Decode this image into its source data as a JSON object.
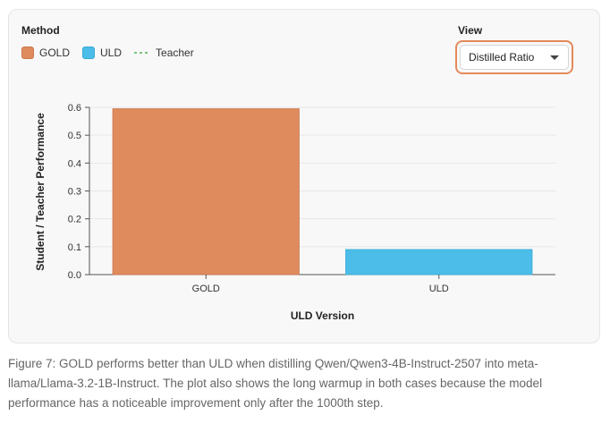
{
  "legend": {
    "title": "Method",
    "items": [
      {
        "label": "GOLD",
        "color": "#e08b5e",
        "style": "swatch"
      },
      {
        "label": "ULD",
        "color": "#4cbde8",
        "style": "swatch"
      },
      {
        "label": "Teacher",
        "color": "#4caf50",
        "style": "dashed-line"
      }
    ]
  },
  "view": {
    "title": "View",
    "selected": "Distilled Ratio",
    "accent": "#e4895a"
  },
  "chart_data": {
    "type": "bar",
    "categories": [
      "GOLD",
      "ULD"
    ],
    "values": [
      0.595,
      0.09
    ],
    "colors": [
      "#e08b5e",
      "#4cbde8"
    ],
    "xlabel": "ULD Version",
    "ylabel": "Student / Teacher Performance",
    "ylim": [
      0,
      0.6
    ],
    "yticks": [
      "0.0",
      "0.1",
      "0.2",
      "0.3",
      "0.4",
      "0.5",
      "0.6"
    ],
    "grid": true
  },
  "caption": "Figure 7: GOLD performs better than ULD when distilling Qwen/Qwen3-4B-Instruct-2507 into meta-llama/Llama-3.2-1B-Instruct. The plot also shows the long warmup in both cases because the model performance has a noticeable improvement only after the 1000th step."
}
